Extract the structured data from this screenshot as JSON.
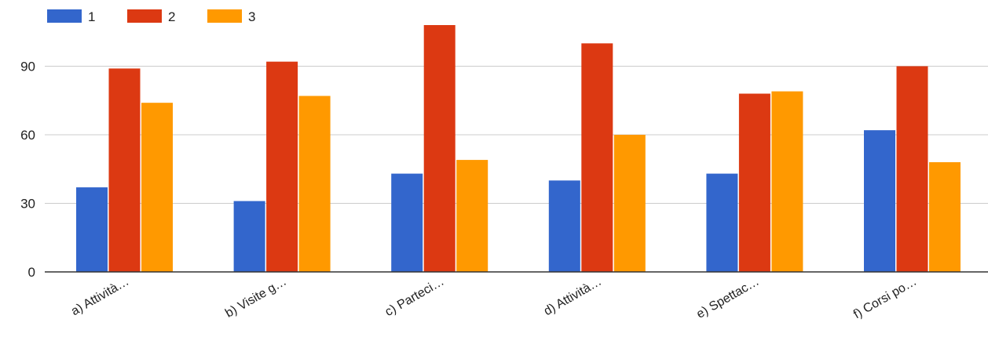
{
  "chart_data": {
    "type": "bar",
    "categories": [
      "a) Attività…",
      "b) Visite g…",
      "c) Parteci…",
      "d) Attività…",
      "e) Spettac…",
      "f) Corsi po…"
    ],
    "series": [
      {
        "name": "1",
        "color": "#3366cc",
        "values": [
          37,
          31,
          43,
          40,
          43,
          62
        ]
      },
      {
        "name": "2",
        "color": "#dc3912",
        "values": [
          89,
          92,
          108,
          100,
          78,
          90
        ]
      },
      {
        "name": "3",
        "color": "#ff9900",
        "values": [
          74,
          77,
          49,
          60,
          79,
          48
        ]
      }
    ],
    "yticks": [
      "0",
      "30",
      "60",
      "90"
    ],
    "ylim": [
      0,
      120
    ],
    "grid": true,
    "legend_position": "top-left",
    "title": "",
    "xlabel": "",
    "ylabel": ""
  }
}
